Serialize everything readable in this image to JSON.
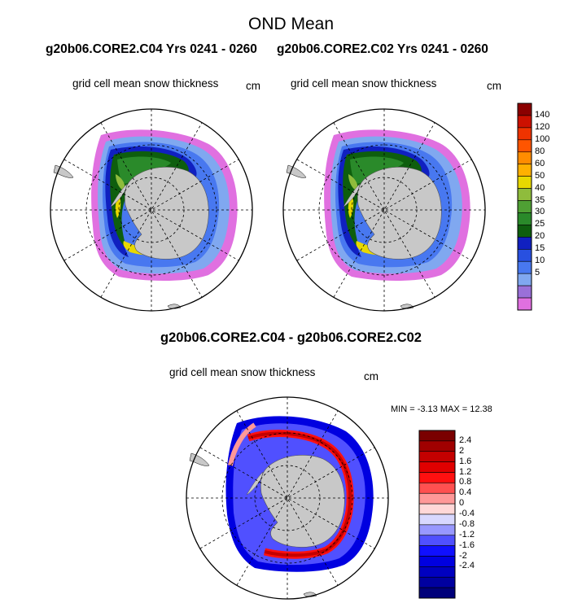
{
  "main_title": "OND Mean",
  "case_titles": [
    "g20b06.CORE2.C04  Yrs 0241 - 0260",
    "g20b06.CORE2.C02  Yrs 0241 - 0260"
  ],
  "diff_title": "g20b06.CORE2.C04 - g20b06.CORE2.C02",
  "panels": [
    {
      "variable": "grid cell mean snow thickness",
      "units": "cm"
    },
    {
      "variable": "grid cell mean snow thickness",
      "units": "cm"
    },
    {
      "variable": "grid cell mean snow thickness",
      "units": "cm",
      "min_label": "MIN =",
      "min_value": "-3.13",
      "max_label": "MAX =",
      "max_value": "12.38"
    }
  ],
  "colorbar_top": {
    "labels": [
      "140",
      "120",
      "100",
      "80",
      "60",
      "50",
      "40",
      "35",
      "30",
      "25",
      "20",
      "15",
      "10",
      "5"
    ],
    "colors": [
      "#8b0000",
      "#cc1100",
      "#ee3300",
      "#ff5500",
      "#ff8c00",
      "#ffb000",
      "#e8d800",
      "#8fbc3c",
      "#4fa034",
      "#2a8a2a",
      "#0e5e0e",
      "#1020c0",
      "#2850e0",
      "#4878f0",
      "#80a8f0",
      "#9a70d8",
      "#e070e0"
    ]
  },
  "colorbar_diff": {
    "labels": [
      "2.4",
      "2",
      "1.6",
      "1.2",
      "0.8",
      "0.4",
      "0",
      "-0.4",
      "-0.8",
      "-1.2",
      "-1.6",
      "-2",
      "-2.4"
    ],
    "colors": [
      "#7a0000",
      "#a00000",
      "#c40000",
      "#e00000",
      "#ff1010",
      "#ff5050",
      "#ff9898",
      "#ffd8d8",
      "#d8d8ff",
      "#9898ff",
      "#5050ff",
      "#1010ff",
      "#0000e0",
      "#0000c0",
      "#0000a0",
      "#00007a"
    ]
  }
}
